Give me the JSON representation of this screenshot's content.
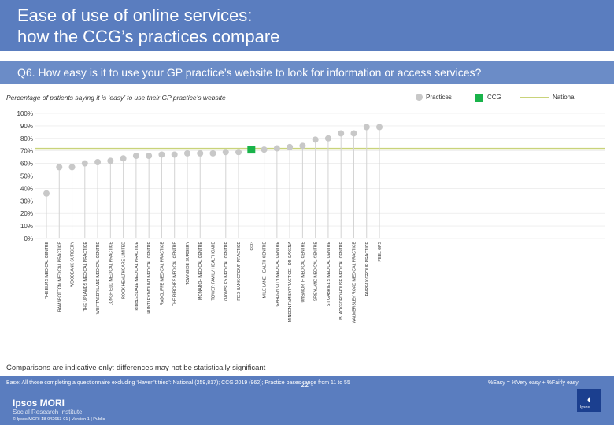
{
  "header": {
    "title": "Ease of use of online services:\nhow the CCG’s practices compare",
    "question": "Q6. How easy is it to use your GP practice’s website to look for information or access services?"
  },
  "subtitle": "Percentage of patients saying it is ‘easy’ to use their GP practice’s website",
  "legend": {
    "practices": "Practices",
    "ccg": "CCG",
    "national": "National"
  },
  "colors": {
    "practice": "#c8c8c8",
    "ccg": "#19b34a",
    "national": "#c9d37a",
    "header": "#5a7dbf"
  },
  "chart_data": {
    "type": "scatter",
    "title": "Percentage of patients saying it is ‘easy’ to use their GP practice’s website",
    "ylim": [
      0,
      100
    ],
    "yticks": [
      "0%",
      "10%",
      "20%",
      "30%",
      "40%",
      "50%",
      "60%",
      "70%",
      "80%",
      "90%",
      "100%"
    ],
    "national": 72,
    "categories": [
      "THE ELMS MEDICAL CENTRE",
      "RAMSBOTTOM MEDICAL PRACTICE",
      "WOODBANK SURGERY",
      "THE UPLANDS MEDICAL PRACTICE",
      "WHITTAKER LANE MEDICAL CENTRE",
      "LONGFIELD MEDICAL PRACTICE",
      "ROCK HEALTHCARE LIMITED",
      "RIBBLESDALE MEDICAL PRACTICE",
      "HUNTLEY MOUNT MEDICAL CENTRE",
      "RADCLIFFE MEDICAL PRACTICE",
      "THE BIRCHES MEDICAL CENTRE",
      "TOWNSIDE SURGERY",
      "MONARCH MEDICAL CENTRE",
      "TOWER FAMILY HEALTHCARE",
      "KNOWSLEY MEDICAL CENTRE",
      "RED BANK GROUP PRACTICE",
      "CCG",
      "MILE LANE HEALTH CENTRE",
      "GARDEN CITY MEDICAL CENTRE",
      "MINDEN FAMILY PRACTICE - DR SAXENA",
      "UNSWORTH MEDICAL CENTRE",
      "GREYLAND MEDICAL CENTRE",
      "ST GABRIEL'S MEDICAL CENTRE",
      "BLACKFORD HOUSE MEDICAL CENTRE",
      "WALMERSLEY ROAD MEDICAL PRACTICE",
      "FAIRFAX GROUP PRACTICE",
      "PEEL GPS"
    ],
    "values": [
      36,
      57,
      57,
      60,
      61,
      62,
      64,
      66,
      66,
      67,
      67,
      68,
      68,
      68,
      69,
      69,
      71,
      71,
      72,
      73,
      74,
      79,
      80,
      84,
      84,
      89,
      89
    ],
    "ccg_index": 16
  },
  "note": "Comparisons are indicative only: differences may not be statistically significant",
  "footer": {
    "base": "Base: All those completing a questionnaire excluding ‘Haven’t tried’: National (259,817); CCG 2019 (962); Practice bases range from 11 to 55",
    "formula": "%Easy = %Very easy + %Fairly easy",
    "page": "22",
    "org": "Ipsos MORI",
    "org_sub": "Social Research Institute",
    "copyright": "© Ipsos MORI     18-042653-01 | Version 1 | Public",
    "logo_text": "Ipsos"
  }
}
